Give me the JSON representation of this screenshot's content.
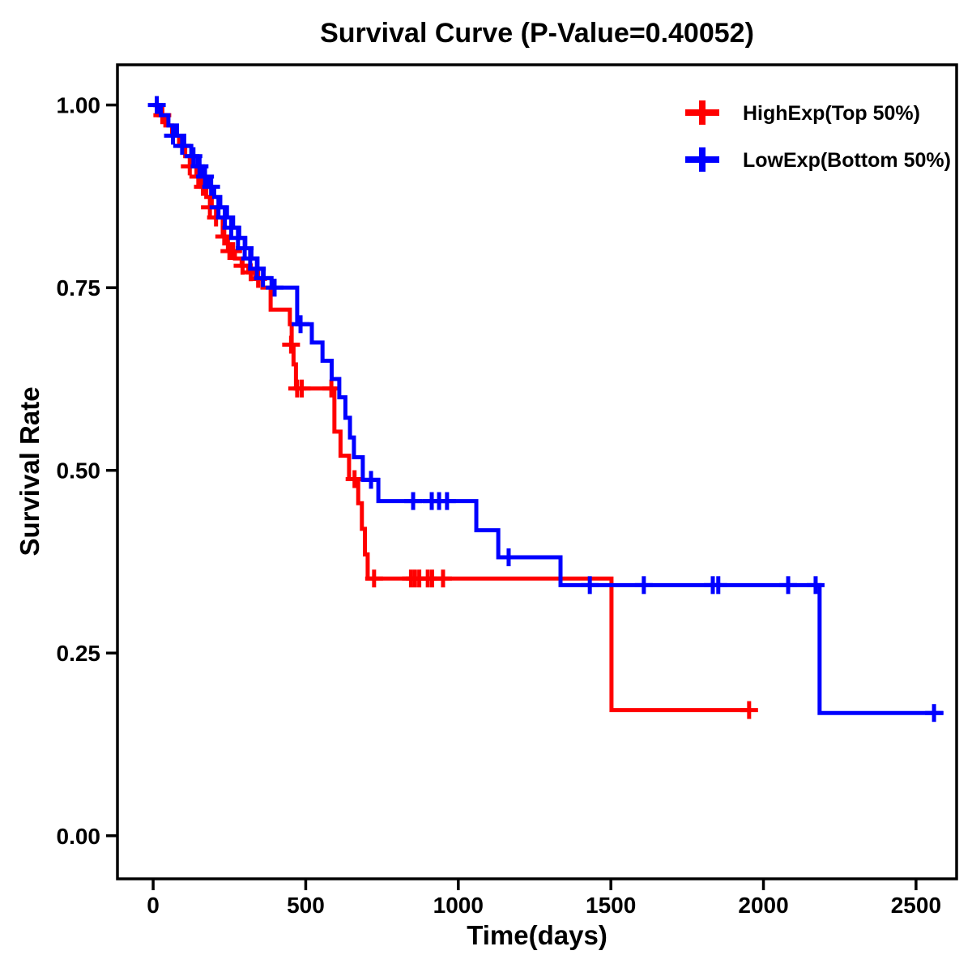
{
  "page": {
    "background": "#ffffff",
    "text_color": "#000000"
  },
  "chart_data": {
    "type": "line",
    "subtype": "kaplan-meier-step",
    "title": "Survival Curve (P-Value=0.40052)",
    "p_value": "0.40052",
    "xlabel": "Time(days)",
    "ylabel": "Survival Rate",
    "grid": false,
    "legend_position": "top-right",
    "axis_color": "#000000",
    "x_ticks": {
      "values": [
        0,
        500,
        1000,
        1500,
        2000,
        2500
      ],
      "labels": [
        "0",
        "500",
        "1000",
        "1500",
        "2000",
        "2500"
      ]
    },
    "y_ticks": {
      "values": [
        1.0,
        0.75,
        0.5,
        0.25,
        0.0
      ],
      "labels": [
        "1.00",
        "0.75",
        "0.50",
        "0.25",
        "0.00"
      ]
    },
    "xlim_days": [
      -117,
      2633
    ],
    "ylim_rate": [
      -0.059,
      1.055
    ],
    "series": [
      {
        "name": "HighExp(Top 50%)",
        "color": "#ff0000",
        "steps": [
          [
            0,
            1.0
          ],
          [
            18,
            0.986
          ],
          [
            40,
            0.972
          ],
          [
            62,
            0.958
          ],
          [
            85,
            0.944
          ],
          [
            105,
            0.93
          ],
          [
            125,
            0.916
          ],
          [
            142,
            0.902
          ],
          [
            158,
            0.888
          ],
          [
            174,
            0.874
          ],
          [
            192,
            0.86
          ],
          [
            212,
            0.846
          ],
          [
            228,
            0.82
          ],
          [
            245,
            0.8
          ],
          [
            268,
            0.79
          ],
          [
            290,
            0.78
          ],
          [
            312,
            0.771
          ],
          [
            334,
            0.762
          ],
          [
            358,
            0.75
          ],
          [
            385,
            0.72
          ],
          [
            448,
            0.7
          ],
          [
            454,
            0.672
          ],
          [
            460,
            0.645
          ],
          [
            468,
            0.612
          ],
          [
            594,
            0.553
          ],
          [
            614,
            0.52
          ],
          [
            642,
            0.488
          ],
          [
            672,
            0.455
          ],
          [
            684,
            0.42
          ],
          [
            694,
            0.385
          ],
          [
            703,
            0.352
          ],
          [
            1502,
            0.172
          ],
          [
            1953,
            0.172
          ]
        ],
        "censors": [
          [
            30,
            0.986
          ],
          [
            120,
            0.916
          ],
          [
            148,
            0.902
          ],
          [
            163,
            0.888
          ],
          [
            186,
            0.86
          ],
          [
            206,
            0.846
          ],
          [
            233,
            0.82
          ],
          [
            250,
            0.8
          ],
          [
            262,
            0.8
          ],
          [
            293,
            0.78
          ],
          [
            320,
            0.771
          ],
          [
            344,
            0.762
          ],
          [
            452,
            0.672
          ],
          [
            472,
            0.612
          ],
          [
            487,
            0.612
          ],
          [
            584,
            0.612
          ],
          [
            660,
            0.488
          ],
          [
            724,
            0.352
          ],
          [
            845,
            0.352
          ],
          [
            858,
            0.352
          ],
          [
            872,
            0.352
          ],
          [
            900,
            0.352
          ],
          [
            914,
            0.352
          ],
          [
            950,
            0.352
          ],
          [
            1953,
            0.172
          ]
        ]
      },
      {
        "name": "LowExp(Bottom 50%)",
        "color": "#0000ff",
        "steps": [
          [
            0,
            1.0
          ],
          [
            25,
            0.986
          ],
          [
            50,
            0.972
          ],
          [
            78,
            0.958
          ],
          [
            102,
            0.944
          ],
          [
            125,
            0.93
          ],
          [
            145,
            0.916
          ],
          [
            163,
            0.902
          ],
          [
            180,
            0.888
          ],
          [
            200,
            0.874
          ],
          [
            220,
            0.86
          ],
          [
            242,
            0.846
          ],
          [
            262,
            0.832
          ],
          [
            282,
            0.818
          ],
          [
            302,
            0.804
          ],
          [
            322,
            0.79
          ],
          [
            342,
            0.776
          ],
          [
            362,
            0.763
          ],
          [
            388,
            0.75
          ],
          [
            472,
            0.7
          ],
          [
            520,
            0.675
          ],
          [
            555,
            0.65
          ],
          [
            585,
            0.625
          ],
          [
            610,
            0.6
          ],
          [
            630,
            0.572
          ],
          [
            645,
            0.545
          ],
          [
            658,
            0.518
          ],
          [
            687,
            0.487
          ],
          [
            738,
            0.458
          ],
          [
            1059,
            0.418
          ],
          [
            1131,
            0.381
          ],
          [
            1335,
            0.343
          ],
          [
            2184,
            0.168
          ],
          [
            2590,
            0.168
          ]
        ],
        "censors": [
          [
            12,
            1.0
          ],
          [
            65,
            0.958
          ],
          [
            95,
            0.944
          ],
          [
            132,
            0.93
          ],
          [
            152,
            0.916
          ],
          [
            170,
            0.902
          ],
          [
            190,
            0.888
          ],
          [
            214,
            0.86
          ],
          [
            235,
            0.846
          ],
          [
            256,
            0.832
          ],
          [
            278,
            0.818
          ],
          [
            300,
            0.804
          ],
          [
            318,
            0.79
          ],
          [
            340,
            0.776
          ],
          [
            360,
            0.763
          ],
          [
            398,
            0.75
          ],
          [
            483,
            0.7
          ],
          [
            714,
            0.487
          ],
          [
            852,
            0.458
          ],
          [
            913,
            0.458
          ],
          [
            937,
            0.458
          ],
          [
            963,
            0.458
          ],
          [
            1165,
            0.381
          ],
          [
            1431,
            0.343
          ],
          [
            1608,
            0.343
          ],
          [
            1834,
            0.343
          ],
          [
            1852,
            0.343
          ],
          [
            2081,
            0.343
          ],
          [
            2171,
            0.343
          ],
          [
            2559,
            0.168
          ]
        ]
      }
    ]
  }
}
